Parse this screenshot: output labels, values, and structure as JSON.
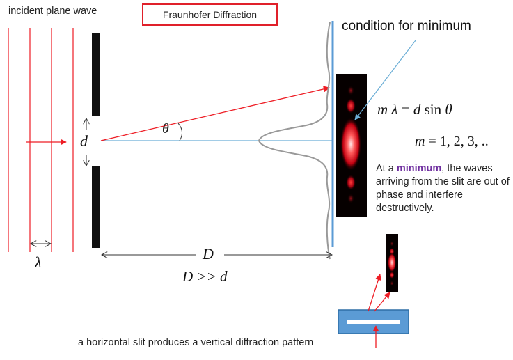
{
  "labels": {
    "incident": "incident plane wave",
    "title": "Fraunhofer Diffraction",
    "condition": "condition for minimum",
    "lambda": "λ",
    "d": "d",
    "theta": "θ",
    "D": "D",
    "D_d": "D >> d",
    "bottom_caption": "a horizontal slit produces a vertical diffraction pattern"
  },
  "equations": {
    "minimum_m": "m",
    "minimum_lambda": "λ",
    "minimum_eq": " = ",
    "minimum_d": "d",
    "minimum_sin": " sin ",
    "minimum_theta": "θ",
    "m_values_m": "m",
    "m_values": " = 1, 2, 3, .."
  },
  "explanation": {
    "prefix": "At a ",
    "highlight": "minimum",
    "suffix": ", the waves arriving from the slit are out of phase and interfere destructively."
  },
  "colors": {
    "red": "#ee1c24",
    "blue": "#6baed6",
    "screen": "#5b9bd5",
    "purple": "#7030a0",
    "slit_fill": "#5b9bd5"
  }
}
